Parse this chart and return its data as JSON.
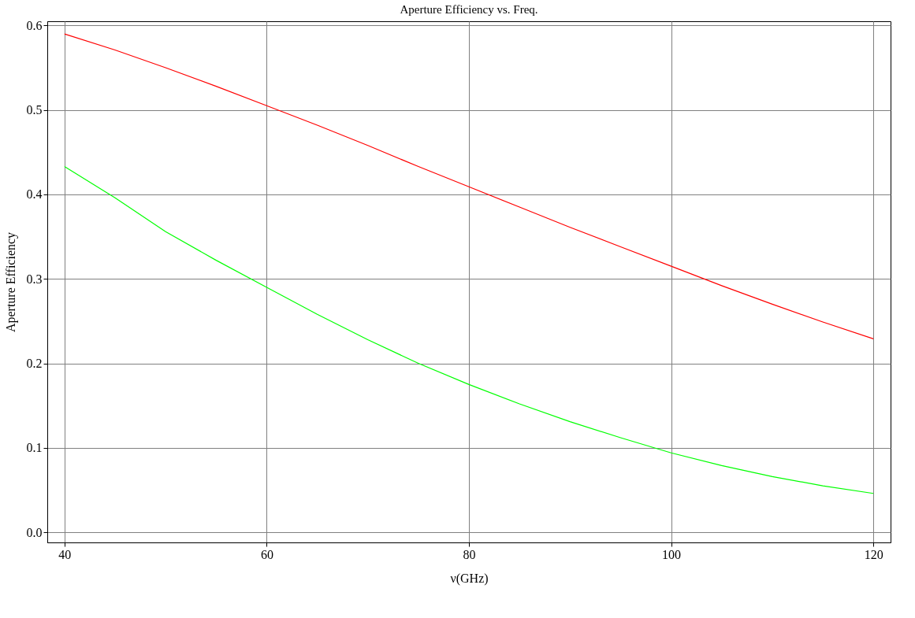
{
  "chart_data": {
    "type": "line",
    "title": "Aperture Efficiency vs. Freq.",
    "xlabel": "ν(GHz)",
    "ylabel": "Aperture Efficiency",
    "x": [
      40,
      45,
      50,
      55,
      60,
      65,
      70,
      75,
      80,
      85,
      90,
      95,
      100,
      105,
      110,
      115,
      120
    ],
    "series": [
      {
        "color": "#ff0000",
        "values": [
          0.59,
          0.571,
          0.55,
          0.528,
          0.505,
          0.482,
          0.458,
          0.433,
          0.409,
          0.385,
          0.361,
          0.338,
          0.315,
          0.292,
          0.27,
          0.249,
          0.229
        ]
      },
      {
        "color": "#00ff00",
        "values": [
          0.433,
          0.396,
          0.356,
          0.322,
          0.29,
          0.258,
          0.228,
          0.2,
          0.175,
          0.152,
          0.131,
          0.112,
          0.094,
          0.079,
          0.066,
          0.055,
          0.046
        ]
      }
    ],
    "xlim": [
      38.3,
      121.7
    ],
    "ylim": [
      -0.012,
      0.605
    ],
    "xticks": [
      40,
      60,
      80,
      100,
      120
    ],
    "yticks": [
      {
        "value": 0,
        "label": "0.0"
      },
      0.1,
      0.2,
      0.3,
      0.4,
      0.5,
      0.6
    ],
    "grid": true,
    "legend": false,
    "line_style": "solid",
    "marker": "none"
  }
}
